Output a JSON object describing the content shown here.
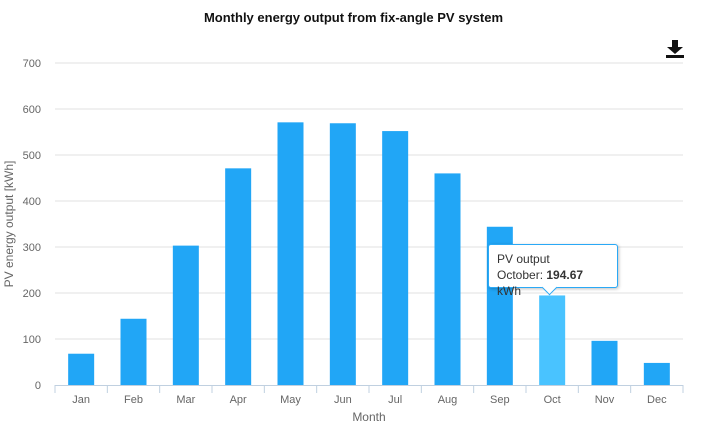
{
  "chart_data": {
    "type": "bar",
    "title": "Monthly energy output from fix-angle PV system",
    "xlabel": "Month",
    "ylabel": "PV energy output [kWh]",
    "ylim": [
      0,
      700
    ],
    "yticks": [
      0,
      100,
      200,
      300,
      400,
      500,
      600,
      700
    ],
    "grid": true,
    "categories": [
      "Jan",
      "Feb",
      "Mar",
      "Apr",
      "May",
      "Jun",
      "Jul",
      "Aug",
      "Sep",
      "Oct",
      "Nov",
      "Dec"
    ],
    "series": [
      {
        "values": [
          68,
          144,
          303,
          471,
          571,
          569,
          552,
          460,
          344,
          194.67,
          96,
          48
        ]
      }
    ],
    "highlight_index": 9,
    "colors": {
      "bar": "#21a6f6",
      "bar_highlight": "#49c3ff",
      "grid": "#e1e1e1",
      "axis": "#c0d0e0"
    }
  },
  "tooltip": {
    "series_name": "PV output",
    "category": "October",
    "value": "194.67",
    "unit": "kWh"
  },
  "toolbar": {
    "download_icon": "download-icon"
  }
}
